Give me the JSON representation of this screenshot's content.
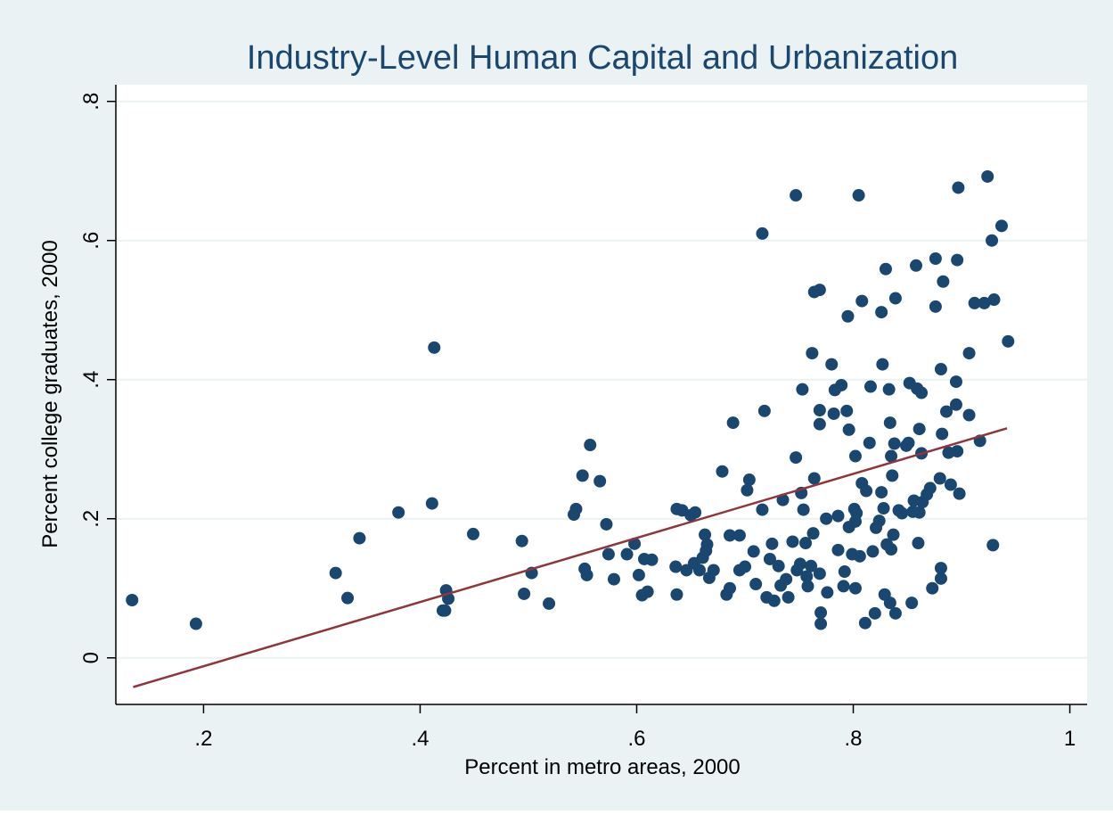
{
  "chart_data": {
    "type": "scatter",
    "title": "Industry-Level Human Capital and Urbanization",
    "x_label": "Percent in metro areas, 2000",
    "y_label": "Percent college graduates, 2000",
    "xlim": [
      0.119,
      1.016
    ],
    "ylim": [
      -0.067,
      0.824
    ],
    "xticks": [
      {
        "value": 0.2,
        "label": ".2"
      },
      {
        "value": 0.4,
        "label": ".4"
      },
      {
        "value": 0.6,
        "label": ".6"
      },
      {
        "value": 0.8,
        "label": ".8"
      },
      1
    ],
    "yticks": [
      0,
      {
        "value": 0.2,
        "label": ".2"
      },
      {
        "value": 0.4,
        "label": ".4"
      },
      {
        "value": 0.6,
        "label": ".6"
      },
      {
        "value": 0.8,
        "label": ".8"
      }
    ],
    "grid": true,
    "series": [
      {
        "mode": "markers",
        "color": "#1a476f",
        "x": [
          0.134,
          0.193,
          0.322,
          0.333,
          0.344,
          0.38,
          0.411,
          0.413,
          0.421,
          0.424,
          0.426,
          0.423,
          0.449,
          0.494,
          0.496,
          0.503,
          0.519,
          0.542,
          0.544,
          0.55,
          0.552,
          0.554,
          0.557,
          0.566,
          0.572,
          0.574,
          0.579,
          0.591,
          0.598,
          0.602,
          0.605,
          0.607,
          0.61,
          0.614,
          0.637,
          0.636,
          0.637,
          0.642,
          0.646,
          0.65,
          0.654,
          0.653,
          0.658,
          0.661,
          0.663,
          0.664,
          0.665,
          0.667,
          0.671,
          0.679,
          0.683,
          0.686,
          0.686,
          0.689,
          0.695,
          0.695,
          0.7,
          0.702,
          0.704,
          0.708,
          0.71,
          0.716,
          0.716,
          0.718,
          0.72,
          0.723,
          0.725,
          0.727,
          0.731,
          0.733,
          0.735,
          0.738,
          0.74,
          0.744,
          0.747,
          0.747,
          0.748,
          0.751,
          0.752,
          0.753,
          0.754,
          0.756,
          0.757,
          0.758,
          0.761,
          0.762,
          0.763,
          0.764,
          0.764,
          0.769,
          0.769,
          0.769,
          0.769,
          0.77,
          0.77,
          0.775,
          0.776,
          0.78,
          0.782,
          0.783,
          0.786,
          0.786,
          0.789,
          0.791,
          0.792,
          0.794,
          0.795,
          0.796,
          0.796,
          0.799,
          0.801,
          0.802,
          0.802,
          0.802,
          0.803,
          0.805,
          0.806,
          0.808,
          0.808,
          0.811,
          0.812,
          0.815,
          0.816,
          0.818,
          0.82,
          0.821,
          0.824,
          0.826,
          0.826,
          0.827,
          0.828,
          0.829,
          0.83,
          0.831,
          0.833,
          0.834,
          0.834,
          0.835,
          0.835,
          0.836,
          0.837,
          0.838,
          0.839,
          0.839,
          0.842,
          0.845,
          0.849,
          0.851,
          0.852,
          0.854,
          0.855,
          0.856,
          0.858,
          0.859,
          0.86,
          0.861,
          0.861,
          0.863,
          0.863,
          0.864,
          0.868,
          0.871,
          0.873,
          0.876,
          0.876,
          0.88,
          0.881,
          0.881,
          0.881,
          0.882,
          0.883,
          0.886,
          0.888,
          0.89,
          0.895,
          0.895,
          0.896,
          0.896,
          0.897,
          0.898,
          0.907,
          0.907,
          0.912,
          0.917,
          0.921,
          0.924,
          0.928,
          0.929,
          0.93,
          0.937,
          0.943
        ],
        "values": [
          0.083,
          0.049,
          0.122,
          0.086,
          0.172,
          0.209,
          0.222,
          0.446,
          0.068,
          0.097,
          0.085,
          0.068,
          0.178,
          0.168,
          0.092,
          0.122,
          0.078,
          0.206,
          0.214,
          0.262,
          0.128,
          0.119,
          0.306,
          0.254,
          0.192,
          0.149,
          0.113,
          0.149,
          0.164,
          0.119,
          0.09,
          0.142,
          0.095,
          0.141,
          0.091,
          0.131,
          0.214,
          0.212,
          0.126,
          0.205,
          0.209,
          0.136,
          0.126,
          0.144,
          0.177,
          0.154,
          0.163,
          0.115,
          0.126,
          0.268,
          0.091,
          0.1,
          0.176,
          0.338,
          0.176,
          0.126,
          0.131,
          0.241,
          0.256,
          0.153,
          0.106,
          0.61,
          0.213,
          0.355,
          0.087,
          0.142,
          0.164,
          0.082,
          0.132,
          0.104,
          0.227,
          0.113,
          0.087,
          0.167,
          0.288,
          0.665,
          0.126,
          0.135,
          0.237,
          0.386,
          0.213,
          0.165,
          0.117,
          0.103,
          0.132,
          0.438,
          0.179,
          0.258,
          0.526,
          0.529,
          0.336,
          0.356,
          0.121,
          0.065,
          0.049,
          0.2,
          0.094,
          0.422,
          0.351,
          0.385,
          0.204,
          0.155,
          0.392,
          0.103,
          0.124,
          0.355,
          0.491,
          0.328,
          0.188,
          0.149,
          0.214,
          0.29,
          0.196,
          0.1,
          0.208,
          0.665,
          0.146,
          0.251,
          0.513,
          0.05,
          0.24,
          0.309,
          0.39,
          0.153,
          0.064,
          0.187,
          0.197,
          0.238,
          0.497,
          0.422,
          0.215,
          0.091,
          0.559,
          0.163,
          0.386,
          0.079,
          0.338,
          0.156,
          0.29,
          0.262,
          0.177,
          0.308,
          0.517,
          0.064,
          0.212,
          0.208,
          0.305,
          0.309,
          0.395,
          0.079,
          0.21,
          0.226,
          0.564,
          0.387,
          0.165,
          0.329,
          0.209,
          0.381,
          0.294,
          0.224,
          0.235,
          0.244,
          0.1,
          0.574,
          0.505,
          0.258,
          0.114,
          0.129,
          0.415,
          0.322,
          0.541,
          0.354,
          0.295,
          0.249,
          0.397,
          0.364,
          0.572,
          0.297,
          0.676,
          0.236,
          0.438,
          0.349,
          0.51,
          0.312,
          0.51,
          0.692,
          0.6,
          0.162,
          0.515,
          0.621,
          0.455
        ]
      },
      {
        "mode": "line",
        "color": "#90353b",
        "x": [
          0.135,
          0.942
        ],
        "values": [
          -0.042,
          0.33
        ]
      }
    ]
  }
}
